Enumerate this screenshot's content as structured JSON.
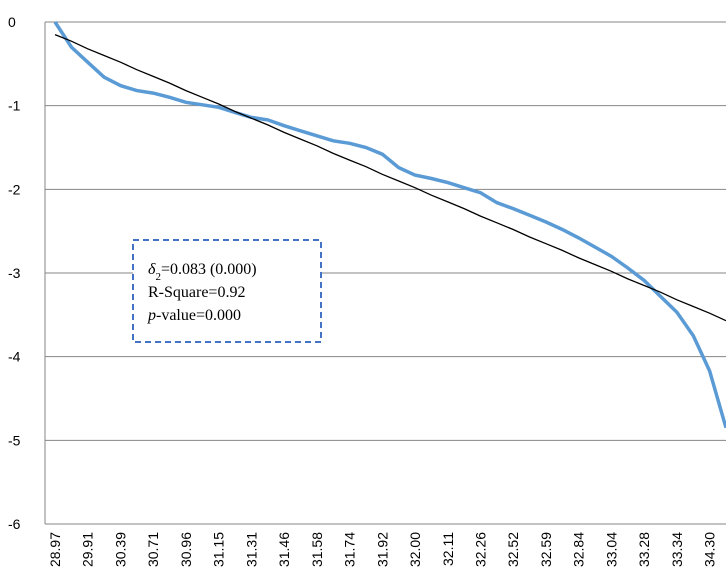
{
  "chart_data": {
    "type": "line",
    "categories": [
      "28.97",
      null,
      "29.91",
      null,
      "30.39",
      null,
      "30.71",
      null,
      "30.96",
      null,
      "31.15",
      null,
      "31.31",
      null,
      "31.46",
      null,
      "31.58",
      null,
      "31.74",
      null,
      "31.92",
      null,
      "32.00",
      null,
      "32.11",
      null,
      "32.26",
      null,
      "32.52",
      null,
      "32.59",
      null,
      "32.84",
      null,
      "33.04",
      null,
      "33.28",
      null,
      "33.34",
      null,
      "34.30",
      null
    ],
    "series": [
      {
        "color": "#5b9bd5",
        "values": [
          0,
          -0.3,
          -0.48,
          -0.66,
          -0.76,
          -0.82,
          -0.85,
          -0.9,
          -0.96,
          -0.99,
          -1.02,
          -1.08,
          -1.14,
          -1.17,
          -1.24,
          -1.3,
          -1.36,
          -1.42,
          -1.45,
          -1.5,
          -1.58,
          -1.74,
          -1.83,
          -1.87,
          -1.92,
          -1.98,
          -2.04,
          -2.16,
          -2.23,
          -2.31,
          -2.39,
          -2.48,
          -2.58,
          -2.69,
          -2.8,
          -2.94,
          -3.09,
          -3.28,
          -3.47,
          -3.75,
          -4.17,
          -4.85
        ]
      },
      {
        "color": "#000000",
        "values": [
          -0.15,
          -0.23,
          -0.32,
          -0.4,
          -0.48,
          -0.57,
          -0.65,
          -0.73,
          -0.82,
          -0.9,
          -0.98,
          -1.07,
          -1.15,
          -1.23,
          -1.32,
          -1.4,
          -1.48,
          -1.57,
          -1.65,
          -1.73,
          -1.82,
          -1.9,
          -1.98,
          -2.07,
          -2.15,
          -2.23,
          -2.32,
          -2.4,
          -2.48,
          -2.57,
          -2.65,
          -2.73,
          -2.82,
          -2.9,
          -2.98,
          -3.07,
          -3.15,
          -3.23,
          -3.32,
          -3.4,
          -3.48,
          -3.57
        ]
      }
    ],
    "ylim": [
      -6,
      0
    ],
    "yticks": [
      -6,
      -5,
      -4,
      -3,
      -2,
      -1,
      0
    ],
    "grid": true,
    "annotation": {
      "line1": [
        "δ",
        "2",
        "=0.083 (0.000)"
      ],
      "line2": "R-Square=0.92",
      "line3": [
        "p",
        "-value=0.000"
      ]
    }
  }
}
